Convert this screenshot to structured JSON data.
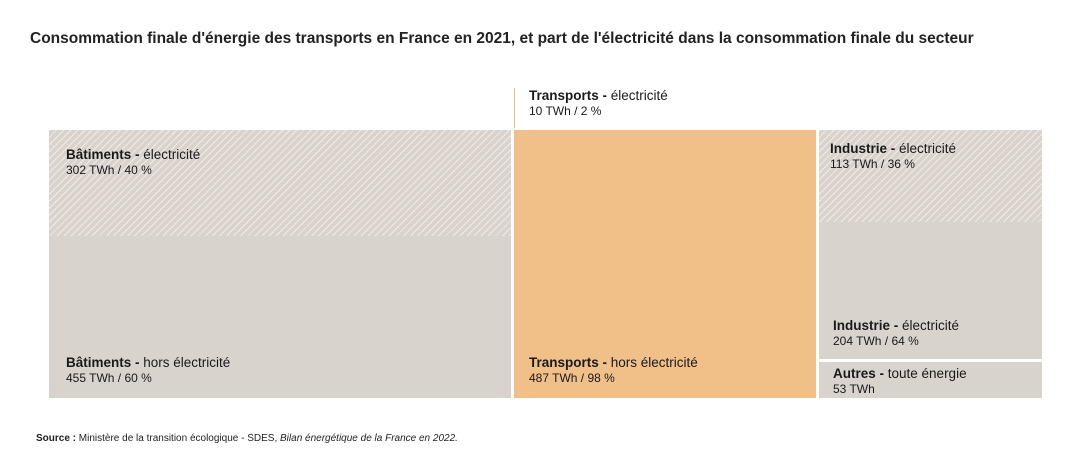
{
  "title": "Consommation finale d'énergie des transports en France en 2021, et part de l'électricité dans la consommation finale du secteur",
  "source": {
    "label": "Source :",
    "text": " Ministère de la transition écologique - SDES, ",
    "italic": "Bilan énergétique de la France en 2022."
  },
  "colors": {
    "transports": "#f0c088",
    "other": "#d9d3ce",
    "hatched": "#dad3cd"
  },
  "chart_data": {
    "type": "treemap",
    "unit": "TWh",
    "items": [
      {
        "key": "bat_elec",
        "sector": "Bâtiments",
        "category": "électricité",
        "value": 302,
        "share_pct": 40,
        "value_text": "302 TWh / 40 %"
      },
      {
        "key": "bat_hors",
        "sector": "Bâtiments",
        "category": "hors électricité",
        "value": 455,
        "share_pct": 60,
        "value_text": "455 TWh / 60 %"
      },
      {
        "key": "tr_elec",
        "sector": "Transports",
        "category": "électricité",
        "value": 10,
        "share_pct": 2,
        "value_text": "10 TWh / 2 %"
      },
      {
        "key": "tr_hors",
        "sector": "Transports",
        "category": "hors électricité",
        "value": 487,
        "share_pct": 98,
        "value_text": "487 TWh / 98 %"
      },
      {
        "key": "ind_elec1",
        "sector": "Industrie",
        "category": "électricité",
        "value": 113,
        "share_pct": 36,
        "value_text": "113 TWh / 36 %"
      },
      {
        "key": "ind_elec2",
        "sector": "Industrie",
        "category": "électricité",
        "value": 204,
        "share_pct": 64,
        "value_text": "204 TWh / 64 %"
      },
      {
        "key": "autres",
        "sector": "Autres",
        "category": "toute énergie",
        "value": 53,
        "share_pct": null,
        "value_text": "53 TWh"
      }
    ]
  }
}
